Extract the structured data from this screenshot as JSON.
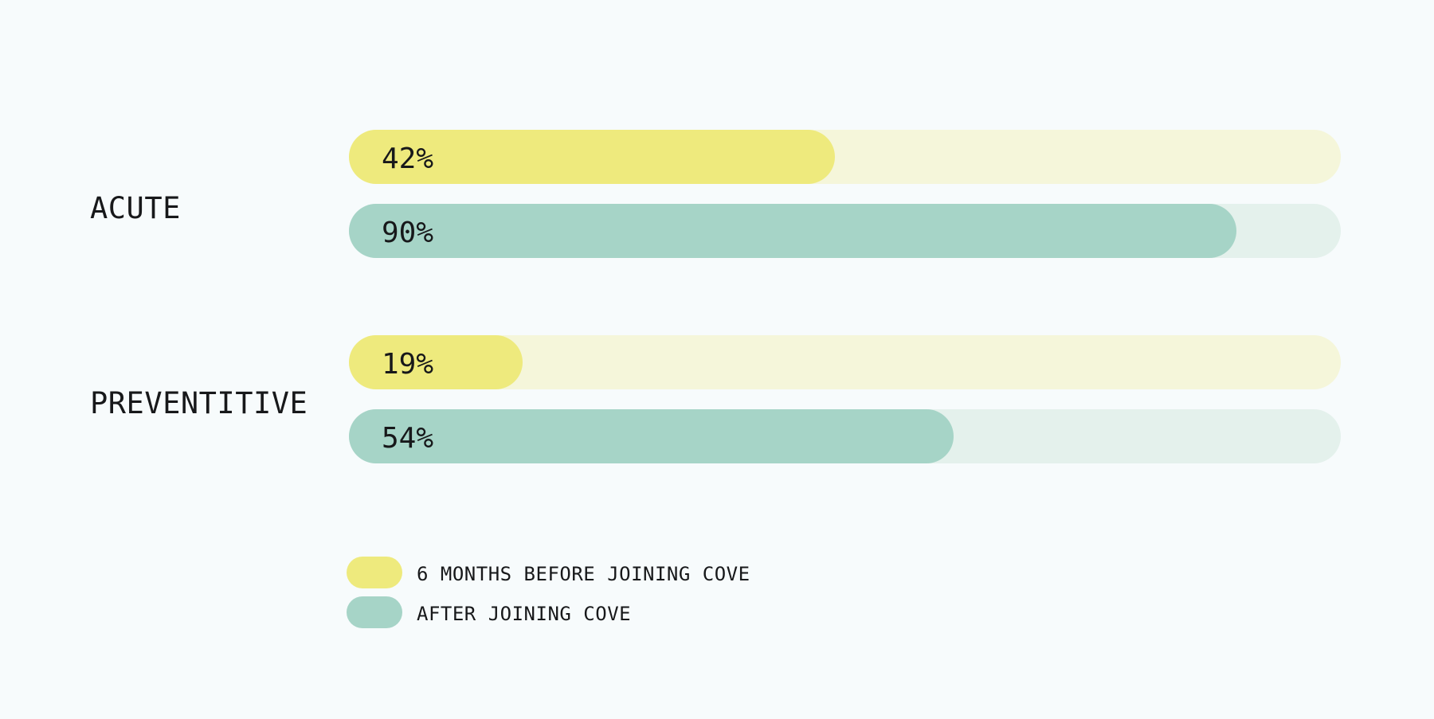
{
  "colors": {
    "page_bg": "#f7fbfc",
    "text": "#17181a",
    "before_fill": "#eeea7d",
    "before_track": "#f5f6da",
    "after_fill": "#a6d4c7",
    "after_track": "#e4f1ec"
  },
  "chart_data": {
    "type": "bar",
    "orientation": "horizontal",
    "title": "",
    "categories": [
      "ACUTE",
      "PREVENTITIVE"
    ],
    "series": [
      {
        "name": "6 MONTHS BEFORE JOINING COVE",
        "values": [
          42,
          19
        ],
        "unit": "%",
        "color": "#eeea7d",
        "track_color": "#f5f6da"
      },
      {
        "name": "AFTER JOINING COVE",
        "values": [
          90,
          54
        ],
        "unit": "%",
        "color": "#a6d4c7",
        "track_color": "#e4f1ec"
      }
    ],
    "xlim": [
      0,
      100
    ],
    "grid": false,
    "axis_ticks": false,
    "value_labels": "inside-start",
    "legend_position": "bottom-left",
    "bar_shape": "pill"
  },
  "groups": [
    {
      "label": "ACUTE",
      "bars": [
        {
          "series": "6 MONTHS BEFORE JOINING COVE",
          "value": 42,
          "value_label": "42%",
          "fill_percent": 49
        },
        {
          "series": "AFTER JOINING COVE",
          "value": 90,
          "value_label": "90%",
          "fill_percent": 89.5
        }
      ]
    },
    {
      "label": "PREVENTITIVE",
      "bars": [
        {
          "series": "6 MONTHS BEFORE JOINING COVE",
          "value": 19,
          "value_label": "19%",
          "fill_percent": 17.5
        },
        {
          "series": "AFTER JOINING COVE",
          "value": 54,
          "value_label": "54%",
          "fill_percent": 61
        }
      ]
    }
  ],
  "legend": [
    {
      "label": "6 MONTHS BEFORE JOINING COVE"
    },
    {
      "label": "AFTER JOINING COVE"
    }
  ]
}
